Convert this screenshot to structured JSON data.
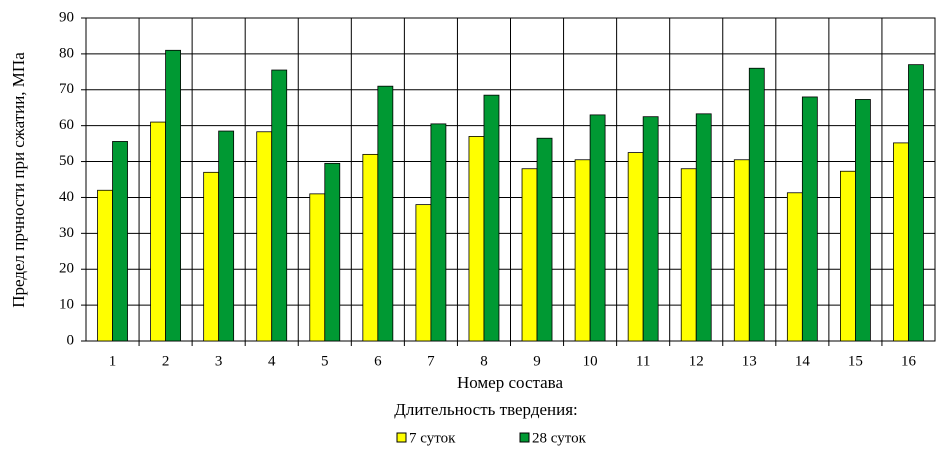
{
  "chart_data": {
    "type": "bar",
    "y_label": "Предел прчности при сжатии, МПа",
    "x_label": "Номер состава",
    "legend_title": "Длительность твердения:",
    "categories": [
      "1",
      "2",
      "3",
      "4",
      "5",
      "6",
      "7",
      "8",
      "9",
      "10",
      "11",
      "12",
      "13",
      "14",
      "15",
      "16"
    ],
    "series": [
      {
        "name": "7 суток",
        "color": "#ffff00",
        "values": [
          42,
          61,
          47,
          58.3,
          41,
          52,
          38,
          57,
          48,
          50.5,
          52.5,
          48,
          50.5,
          41.3,
          47.3,
          55.2
        ]
      },
      {
        "name": "28 суток",
        "color": "#009933",
        "values": [
          55.6,
          81,
          58.5,
          75.5,
          49.5,
          71,
          60.5,
          68.5,
          56.5,
          63,
          62.5,
          63.3,
          76,
          68,
          67.3,
          77
        ]
      }
    ],
    "ylim": [
      0,
      90
    ],
    "yticks": [
      0,
      10,
      20,
      30,
      40,
      50,
      60,
      70,
      80,
      90
    ],
    "grid": true
  }
}
